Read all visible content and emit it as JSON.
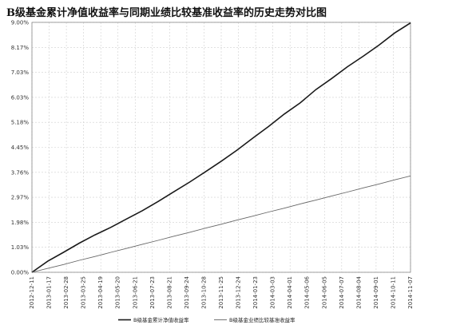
{
  "chart_data": {
    "type": "line",
    "title": "B级基金累计净值收益率与同期业绩比较基准收益率的历史走势对比图",
    "xlabel": "",
    "ylabel": "",
    "ylim": [
      0,
      9.0
    ],
    "y_ticks": [
      "0.00%",
      "1.03%",
      "1.98%",
      "2.97%",
      "3.76%",
      "4.45%",
      "5.18%",
      "6.03%",
      "7.03%",
      "8.17%",
      "9.00%"
    ],
    "x_ticks": [
      "2012-12-11",
      "2013-01-17",
      "2013-02-28",
      "2013-03-25",
      "2013-04-19",
      "2013-05-20",
      "2013-06-21",
      "2013-07-23",
      "2013-08-21",
      "2013-09-24",
      "2013-10-28",
      "2013-11-25",
      "2013-12-24",
      "2014-01-23",
      "2014-03-03",
      "2014-04-01",
      "2014-05-06",
      "2014-06-05",
      "2014-07-07",
      "2014-08-04",
      "2014-09-01",
      "2014-10-11",
      "2014-11-07"
    ],
    "grid": true,
    "legend_position": "bottom",
    "series": [
      {
        "name": "B级基金累计净值收益率",
        "color": "#1a1a1a",
        "values": [
          0,
          0.4,
          0.72,
          1.05,
          1.35,
          1.62,
          1.92,
          2.22,
          2.55,
          2.9,
          3.25,
          3.62,
          4.0,
          4.4,
          4.83,
          5.25,
          5.7,
          6.1,
          6.58,
          6.98,
          7.4,
          7.78,
          8.18,
          8.62,
          8.98
        ]
      },
      {
        "name": "B级基金业绩比较基准收益率",
        "color": "#666666",
        "values": [
          0,
          0.14,
          0.28,
          0.43,
          0.57,
          0.72,
          0.86,
          1.01,
          1.15,
          1.3,
          1.44,
          1.59,
          1.73,
          1.88,
          2.02,
          2.17,
          2.31,
          2.46,
          2.6,
          2.75,
          2.89,
          3.04,
          3.18,
          3.33,
          3.47
        ]
      }
    ]
  }
}
